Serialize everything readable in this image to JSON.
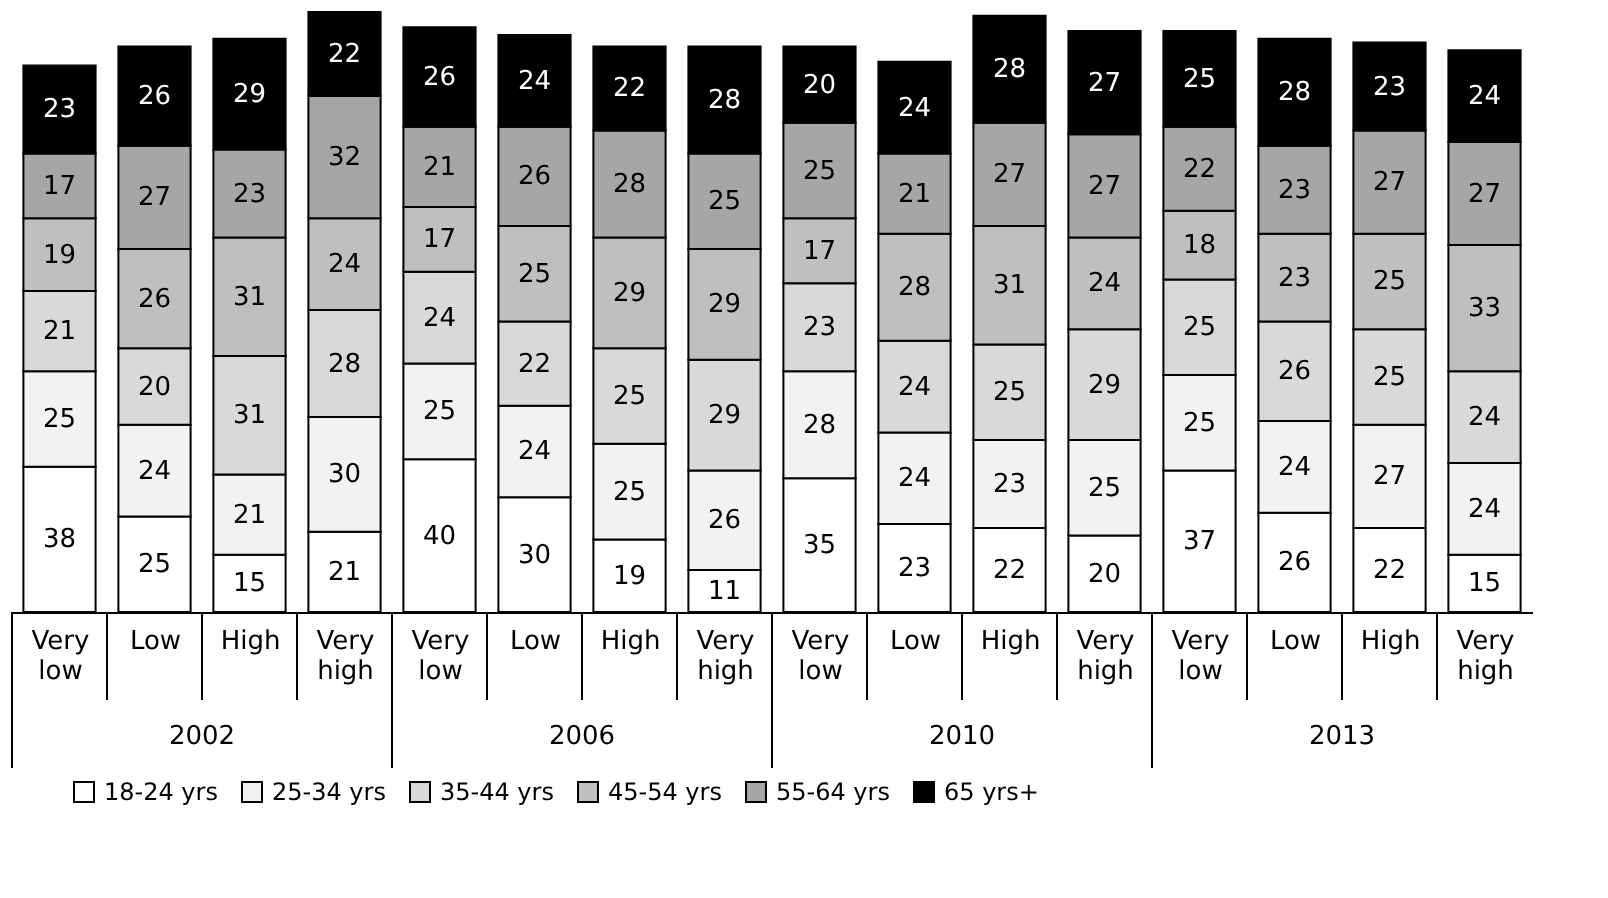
{
  "chart_data": {
    "type": "bar",
    "stacked": true,
    "data_labels": true,
    "legend": "bottom",
    "categories": [
      "Very low",
      "Low",
      "High",
      "Very high",
      "Very low",
      "Low",
      "High",
      "Very high",
      "Very low",
      "Low",
      "High",
      "Very high",
      "Very low",
      "Low",
      "High",
      "Very high"
    ],
    "annotations": [
      "2002",
      "2006",
      "2010",
      "2013"
    ],
    "series": [
      {
        "name": "18-24 yrs",
        "color": "#ffffff",
        "values": [
          38,
          25,
          15,
          21,
          40,
          30,
          19,
          11,
          35,
          23,
          22,
          20,
          37,
          26,
          22,
          15
        ]
      },
      {
        "name": "25-34 yrs",
        "color": "#f2f2f2",
        "values": [
          25,
          24,
          21,
          30,
          25,
          24,
          25,
          26,
          28,
          24,
          23,
          25,
          25,
          24,
          27,
          24
        ]
      },
      {
        "name": "35-44 yrs",
        "color": "#d9d9d9",
        "values": [
          21,
          20,
          31,
          28,
          24,
          22,
          25,
          29,
          23,
          24,
          25,
          29,
          25,
          26,
          25,
          24
        ]
      },
      {
        "name": "45-54 yrs",
        "color": "#bfbfbf",
        "values": [
          19,
          26,
          31,
          24,
          17,
          25,
          29,
          29,
          17,
          28,
          31,
          24,
          18,
          23,
          25,
          33
        ]
      },
      {
        "name": "55-64 yrs",
        "color": "#a6a6a6",
        "values": [
          17,
          27,
          23,
          32,
          21,
          26,
          28,
          25,
          25,
          21,
          27,
          27,
          22,
          23,
          27,
          27
        ]
      },
      {
        "name": "65 yrs+",
        "color": "#000000",
        "values": [
          23,
          26,
          29,
          22,
          26,
          24,
          22,
          28,
          20,
          24,
          28,
          27,
          25,
          28,
          23,
          24
        ]
      }
    ]
  }
}
